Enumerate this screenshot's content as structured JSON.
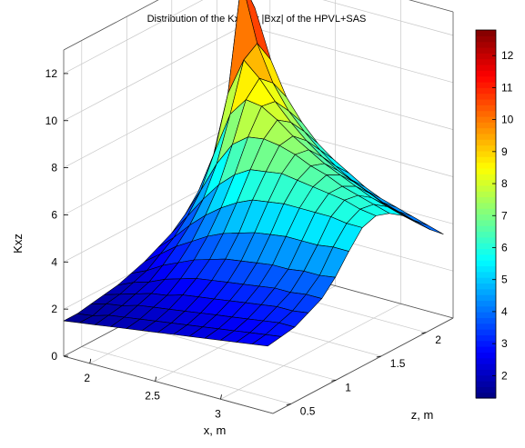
{
  "chart_data": {
    "type": "surface",
    "title": "Distribution of the Kxz for |Bxz| of the HPVL+SAS",
    "xlabel": "x, m",
    "ylabel": "z, m",
    "zlabel": "Kxz",
    "xlim": [
      1.8,
      3.4
    ],
    "ylim": [
      0.3,
      2.3
    ],
    "zlim": [
      0,
      13
    ],
    "xticks": [
      "2",
      "2.5",
      "3"
    ],
    "xtick_values": [
      2,
      2.5,
      3
    ],
    "yticks": [
      "0.5",
      "1",
      "1.5",
      "2"
    ],
    "ytick_values": [
      0.5,
      1,
      1.5,
      2
    ],
    "zticks": [
      "0",
      "2",
      "4",
      "6",
      "8",
      "10",
      "12"
    ],
    "ztick_values": [
      0,
      2,
      4,
      6,
      8,
      10,
      12
    ],
    "grid": true,
    "colormap": "jet",
    "colorbar": {
      "range": [
        1.3,
        12.8
      ],
      "ticks": [
        "2",
        "3",
        "4",
        "5",
        "6",
        "7",
        "8",
        "9",
        "10",
        "11",
        "12"
      ],
      "tick_values": [
        2,
        3,
        4,
        5,
        6,
        7,
        8,
        9,
        10,
        11,
        12
      ]
    },
    "x": [
      1.8,
      1.92,
      2.04,
      2.16,
      2.28,
      2.4,
      2.52,
      2.64,
      2.76,
      2.88,
      3.0,
      3.12,
      3.24,
      3.36
    ],
    "z": [
      0.3,
      0.45,
      0.6,
      0.75,
      0.9,
      1.05,
      1.2,
      1.35,
      1.5,
      1.65,
      1.8,
      1.95,
      2.1,
      2.25
    ],
    "values": [
      [
        1.5,
        1.6,
        1.7,
        1.8,
        1.9,
        2.0,
        2.1,
        2.2,
        2.3,
        2.4,
        2.5,
        2.6,
        2.7,
        2.8
      ],
      [
        1.5,
        1.6,
        1.8,
        1.9,
        2.0,
        2.1,
        2.2,
        2.3,
        2.4,
        2.5,
        2.6,
        2.7,
        2.8,
        2.9
      ],
      [
        1.6,
        1.8,
        1.9,
        2.1,
        2.2,
        2.3,
        2.4,
        2.5,
        2.6,
        2.7,
        2.8,
        2.9,
        3.0,
        3.0
      ],
      [
        1.7,
        1.9,
        2.1,
        2.3,
        2.4,
        2.6,
        2.7,
        2.8,
        2.9,
        3.0,
        3.1,
        3.2,
        3.2,
        3.3
      ],
      [
        1.8,
        2.1,
        2.3,
        2.6,
        2.8,
        3.0,
        3.1,
        3.2,
        3.3,
        3.4,
        3.5,
        3.5,
        3.6,
        3.6
      ],
      [
        2.0,
        2.3,
        2.7,
        3.0,
        3.3,
        3.5,
        3.7,
        3.8,
        3.9,
        4.0,
        4.0,
        4.1,
        4.1,
        4.2
      ],
      [
        2.2,
        2.7,
        3.2,
        3.6,
        4.0,
        4.3,
        4.5,
        4.7,
        4.8,
        4.9,
        4.9,
        4.9,
        5.0,
        5.0
      ],
      [
        2.5,
        3.1,
        3.8,
        4.4,
        4.9,
        5.3,
        5.6,
        5.7,
        5.8,
        5.8,
        5.8,
        5.8,
        5.7,
        5.7
      ],
      [
        2.8,
        3.7,
        4.6,
        5.4,
        6.0,
        6.4,
        6.5,
        6.6,
        6.5,
        6.4,
        6.3,
        6.2,
        6.0,
        5.9
      ],
      [
        3.3,
        4.5,
        5.8,
        6.8,
        7.3,
        7.4,
        7.3,
        7.1,
        6.8,
        6.6,
        6.3,
        6.1,
        5.9,
        5.7
      ],
      [
        4.0,
        5.8,
        7.6,
        8.4,
        8.3,
        7.9,
        7.4,
        7.0,
        6.6,
        6.3,
        6.0,
        5.7,
        5.5,
        5.3
      ],
      [
        5.0,
        8.0,
        9.6,
        9.0,
        8.2,
        7.5,
        6.9,
        6.4,
        6.0,
        5.7,
        5.4,
        5.1,
        4.9,
        4.7
      ],
      [
        6.5,
        12.5,
        10.0,
        8.5,
        7.5,
        6.8,
        6.2,
        5.7,
        5.3,
        5.0,
        4.7,
        4.5,
        4.3,
        4.1
      ],
      [
        8.0,
        11.0,
        9.0,
        7.6,
        6.7,
        6.0,
        5.5,
        5.1,
        4.7,
        4.4,
        4.2,
        4.0,
        3.8,
        3.6
      ]
    ]
  }
}
